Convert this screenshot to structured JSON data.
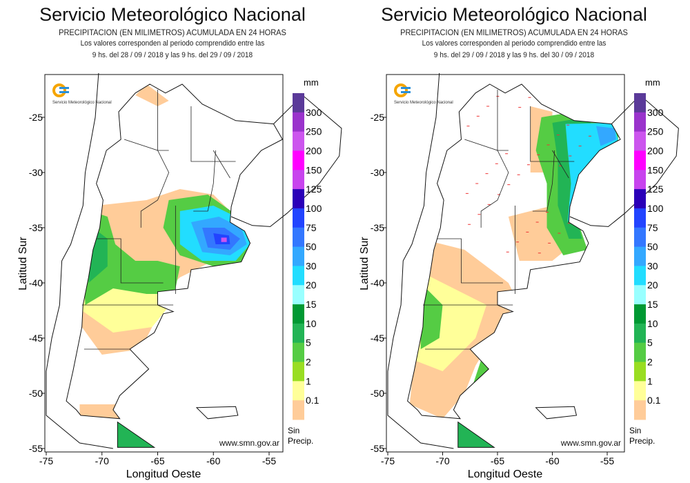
{
  "maps": [
    {
      "title": "Servicio Meteorológico Nacional",
      "line1": "PRECIPITACION (EN MILIMETROS) ACUMULADA EN 24 HORAS",
      "line2": "Los valores corresponden al periodo comprendido entre las",
      "line3": "9 hs. del 28 / 09 / 2018  y las 9 hs. del 29 / 09 / 2018"
    },
    {
      "title": "Servicio Meteorológico Nacional",
      "line1": "PRECIPITACION (EN MILIMETROS) ACUMULADA EN 24 HORAS",
      "line2": "Los valores corresponden al periodo comprendido entre las",
      "line3": "9 hs. del 29 / 09 / 2018  y las 9 hs. del 30 / 09 / 2018"
    }
  ],
  "axes": {
    "xlabel": "Longitud Oeste",
    "ylabel": "Latitud Sur",
    "xticks": [
      "-75",
      "-70",
      "-65",
      "-60",
      "-55"
    ],
    "yticks": [
      "-25",
      "-30",
      "-35",
      "-40",
      "-45",
      "-50",
      "-55"
    ]
  },
  "logo": {
    "text": "Servicio Meteorológico Nacional"
  },
  "url": "www.smn.gov.ar",
  "legend": {
    "unit": "mm",
    "labels": [
      "300",
      "250",
      "200",
      "150",
      "125",
      "100",
      "75",
      "50",
      "30",
      "20",
      "15",
      "10",
      "5",
      "2",
      "1",
      "0.1"
    ],
    "no_precip": [
      "Sin",
      "Precip."
    ],
    "colors": [
      "#5b3a99",
      "#9a33cc",
      "#cc55ee",
      "#ff00ff",
      "#c844ee",
      "#2a00b8",
      "#2244ff",
      "#3377ff",
      "#33a8ff",
      "#22ddff",
      "#99ffff",
      "#009933",
      "#22b455",
      "#55cc44",
      "#99dd22",
      "#ffff99",
      "#ffcc99"
    ]
  }
}
